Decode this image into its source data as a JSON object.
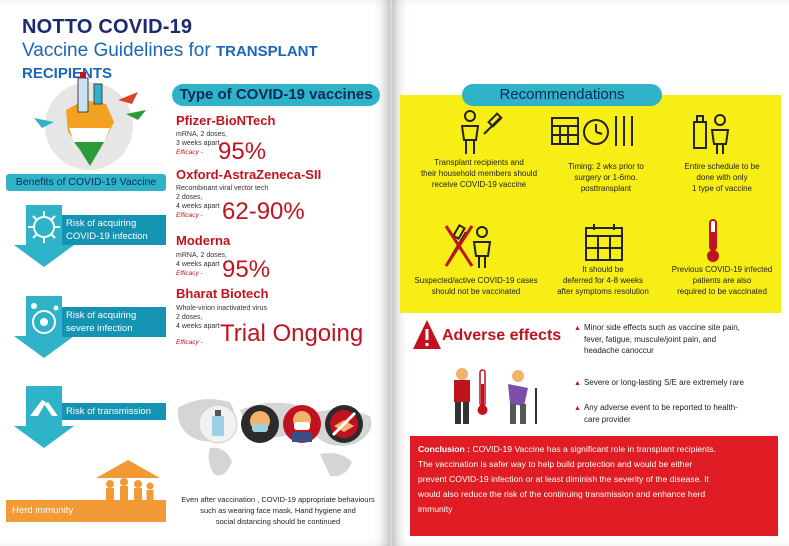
{
  "header": {
    "title_line1": "NOTTO COVID-19",
    "title_line2_prefix": "Vaccine Guidelines for ",
    "title_line2_caps": "TRANSPLANT RECIPIENTS"
  },
  "vaccines": {
    "title": "Type of COVID-19 vaccines",
    "items": [
      {
        "name": "Pfizer-BioNTech",
        "desc": [
          "mRNA, 2 doses,",
          "3 weeks apart"
        ],
        "efficacy_label": "Efficacy -",
        "efficacy": "95%"
      },
      {
        "name": "Oxford-AstraZeneca-SII",
        "desc": [
          "Recombinant viral vector tech",
          "2 doses,",
          "4 weeks apart"
        ],
        "efficacy_label": "Efficacy -",
        "efficacy": "62-90%"
      },
      {
        "name": "Moderna",
        "desc": [
          "mRNA, 2 doses,",
          "4 weeks apart"
        ],
        "efficacy_label": "Efficacy -",
        "efficacy": "95%"
      },
      {
        "name": "Bharat Biotech",
        "desc": [
          "Whole-virion inactivated virus",
          "2 doses,",
          "4 weeks apart"
        ],
        "efficacy_label": "Efficacy -",
        "efficacy": "Trial Ongoing"
      }
    ]
  },
  "benefits": {
    "title": "Benefits of COVID-19 Vaccine",
    "risks": [
      {
        "line1": "Risk of acquiring",
        "line2": "COVID-19 infection"
      },
      {
        "line1": "Risk of acquiring",
        "line2": "severe infection"
      },
      {
        "line1": "Risk of transmission",
        "line2": ""
      }
    ],
    "herd": "Herd immunity"
  },
  "caption": {
    "line1": "Even after vaccination , COVID-19 appropriate behaviours",
    "line2": "such as wearing face mask, Hand hygiene and",
    "line3": "social distancing should be continued"
  },
  "recommendations": {
    "title": "Recommendations",
    "items": [
      {
        "lines": [
          "Transplant recipients and",
          "their household members should",
          "receive COVID-19 vaccine"
        ]
      },
      {
        "lines": [
          "Timing: 2 wks prior to",
          "surgery or 1-6mo.",
          "posttransplant"
        ]
      },
      {
        "lines": [
          "Entire schedule to be",
          "done with only",
          "1 type of vaccine"
        ]
      },
      {
        "lines": [
          "Suspected/active COVID-19 cases",
          "should not be vaccinated"
        ]
      },
      {
        "lines": [
          "It should be",
          "deferred for 4-8 weeks",
          "after symptoms resolution"
        ]
      },
      {
        "lines": [
          "Previous COVID-19 infected",
          "patients are also",
          "required to be vaccinated"
        ]
      }
    ]
  },
  "adverse": {
    "title": "Adverse effects",
    "bullets": [
      [
        "Minor side effects such as vaccine site pain,",
        "fever, fatigue, muscule/joint pain, and",
        "headache canoccur"
      ],
      [
        "Severe or long-lasting S/E are extremely rare"
      ],
      [
        "Any adverse event to be reported to health-",
        "care provider"
      ]
    ]
  },
  "conclusion": {
    "label": "Conclusion : ",
    "lines": [
      "COVID-19 Vaccine has a significant  role in transplant recipients.",
      "The vaccination is safer way to help build protection and would be either",
      "prevent COVID-19 infection or at least diminish the severity of the disease. It",
      "would also reduce the risk of the continuing transmission and enhance herd",
      "immunity"
    ]
  },
  "colors": {
    "navy": "#1a2c6b",
    "teal": "#2fb3c8",
    "red": "#c1121f",
    "yellow": "#f7ee16",
    "orange": "#f19a36"
  }
}
